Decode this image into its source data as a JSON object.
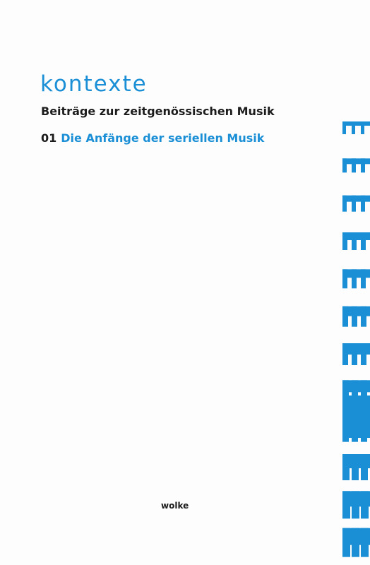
{
  "cover": {
    "series_title": "kontexte",
    "subtitle": "Beiträge zur zeitgenössischen Musik",
    "volume_number": "01",
    "volume_title": "Die Anfänge der seriellen Musik",
    "publisher": "wolke"
  },
  "colors": {
    "accent": "#1a8fd6",
    "text": "#1c1c1c",
    "background": "#fdfdfd"
  }
}
